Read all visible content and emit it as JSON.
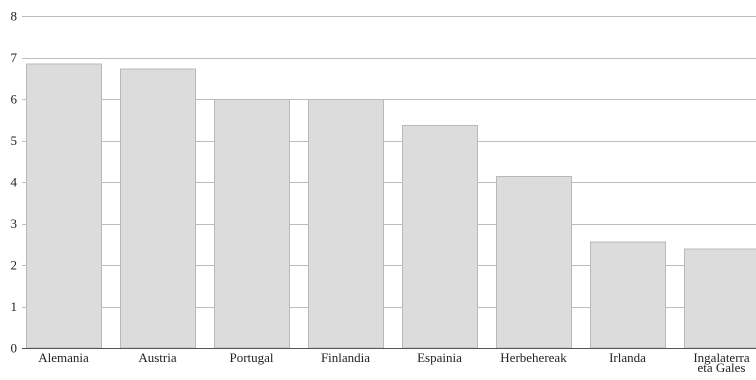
{
  "chart_data": {
    "type": "bar",
    "categories": [
      [
        "Alemania"
      ],
      [
        "Austria"
      ],
      [
        "Portugal"
      ],
      [
        "Finlandia"
      ],
      [
        "Espainia"
      ],
      [
        "Herbehereak"
      ],
      [
        "Irlanda"
      ],
      [
        "Ingalaterra",
        "eta Gales"
      ]
    ],
    "values": [
      6.85,
      6.73,
      6.0,
      6.0,
      5.37,
      4.15,
      2.57,
      2.4
    ],
    "title": "",
    "xlabel": "",
    "ylabel": "",
    "ylim": [
      0,
      8
    ],
    "yticks": [
      0,
      1,
      2,
      3,
      4,
      5,
      6,
      7,
      8
    ],
    "grid": true,
    "legend": "none",
    "bar_color": "#dcdcdd",
    "bar_stroke": "#b9b9b9",
    "grid_color": "#bdbdbd"
  }
}
